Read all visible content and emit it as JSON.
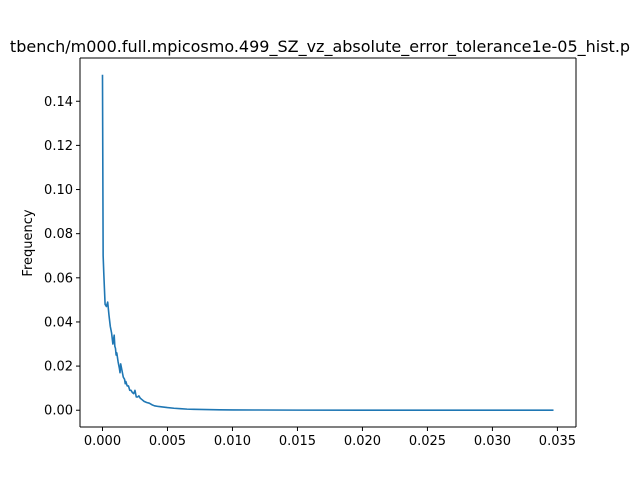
{
  "chart_data": {
    "type": "line",
    "title": "tbench/m000.full.mpicosmo.499_SZ_vz_absolute_error_tolerance1e-05_hist.p",
    "xlabel": "",
    "ylabel": "Frequency",
    "xlim": [
      -0.00173,
      0.03643
    ],
    "ylim": [
      -0.0076,
      0.1596
    ],
    "xticks": [
      0.0,
      0.005,
      0.01,
      0.015,
      0.02,
      0.025,
      0.03,
      0.035
    ],
    "xtick_labels": [
      "0.000",
      "0.005",
      "0.010",
      "0.015",
      "0.020",
      "0.025",
      "0.030",
      "0.035"
    ],
    "yticks": [
      0.0,
      0.02,
      0.04,
      0.06,
      0.08,
      0.1,
      0.12,
      0.14
    ],
    "ytick_labels": [
      "0.00",
      "0.02",
      "0.04",
      "0.06",
      "0.08",
      "0.10",
      "0.12",
      "0.14"
    ],
    "grid": false,
    "series": [
      {
        "color": "#1f77b4",
        "x": [
          0.0,
          5e-05,
          0.0001,
          0.00015,
          0.0002,
          0.0003,
          0.0004,
          0.0005,
          0.0006,
          0.0007,
          0.0008,
          0.0009,
          0.00095,
          0.001,
          0.00105,
          0.0011,
          0.0012,
          0.0013,
          0.00135,
          0.0014,
          0.0015,
          0.0016,
          0.0017,
          0.00175,
          0.0018,
          0.0019,
          0.002,
          0.0021,
          0.0022,
          0.0023,
          0.0024,
          0.0025,
          0.0026,
          0.0027,
          0.0028,
          0.0029,
          0.003,
          0.0032,
          0.0034,
          0.0036,
          0.0038,
          0.004,
          0.0043,
          0.0046,
          0.005,
          0.0055,
          0.006,
          0.0065,
          0.007,
          0.008,
          0.009,
          0.01,
          0.012,
          0.015,
          0.02,
          0.025,
          0.03,
          0.0347
        ],
        "values": [
          0.152,
          0.07,
          0.062,
          0.055,
          0.048,
          0.047,
          0.049,
          0.043,
          0.038,
          0.035,
          0.03,
          0.034,
          0.029,
          0.028,
          0.025,
          0.026,
          0.022,
          0.019,
          0.017,
          0.021,
          0.018,
          0.015,
          0.014,
          0.012,
          0.013,
          0.011,
          0.011,
          0.009,
          0.009,
          0.008,
          0.0075,
          0.009,
          0.006,
          0.006,
          0.0065,
          0.0055,
          0.005,
          0.004,
          0.0035,
          0.0032,
          0.0025,
          0.002,
          0.0017,
          0.0015,
          0.0012,
          0.0009,
          0.0007,
          0.0005,
          0.0004,
          0.0003,
          0.0002,
          0.00015,
          0.0001,
          5e-05,
          2e-05,
          1e-05,
          0.0,
          0.0
        ]
      }
    ]
  }
}
